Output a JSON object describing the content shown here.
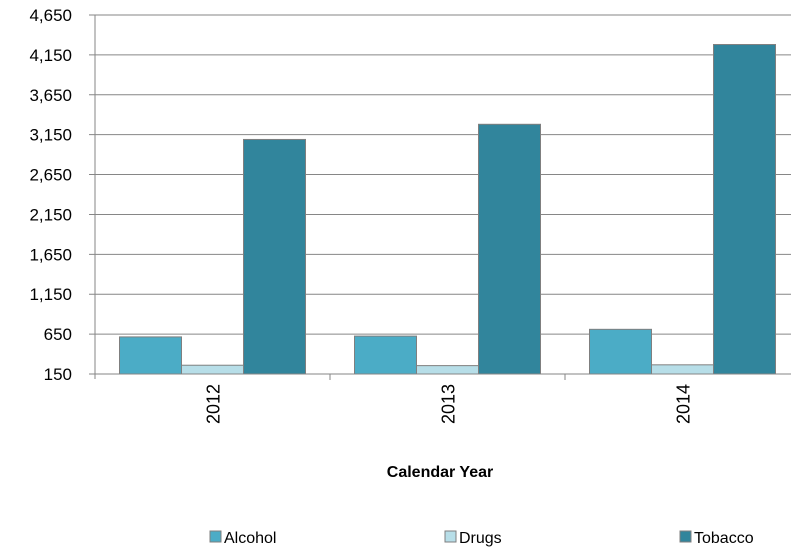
{
  "chart_data": {
    "type": "bar",
    "title": "",
    "xlabel": "Calendar Year",
    "ylabel": "",
    "categories": [
      "2012",
      "2013",
      "2014"
    ],
    "ylim": [
      150,
      4650
    ],
    "yticks": [
      150,
      650,
      1150,
      1650,
      2150,
      2650,
      3150,
      3650,
      4150,
      4650
    ],
    "ytick_labels": [
      "150",
      "650",
      "1,150",
      "1,650",
      "2,150",
      "2,650",
      "3,150",
      "3,650",
      "4,150",
      "4,650"
    ],
    "grid": true,
    "legend_position": "bottom",
    "series": [
      {
        "name": "Alcohol",
        "color": "#4BACC6",
        "values": [
          615,
          625,
          710
        ]
      },
      {
        "name": "Drugs",
        "color": "#B7DEE8",
        "values": [
          260,
          255,
          265
        ]
      },
      {
        "name": "Tobacco",
        "color": "#31859C",
        "values": [
          3090,
          3280,
          4280
        ]
      }
    ]
  }
}
